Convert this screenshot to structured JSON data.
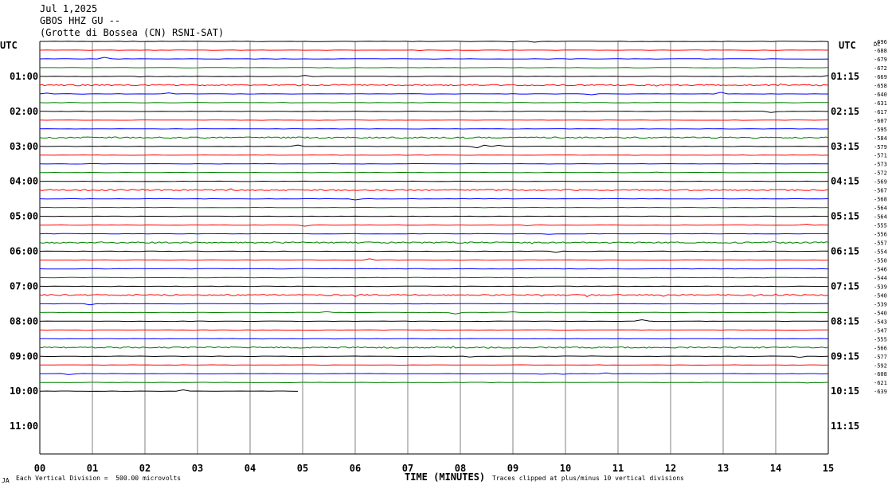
{
  "header": {
    "date": "Jul 1,2025",
    "station": "GBOS HHZ GU --",
    "location": "(Grotte di Bossea (CN) RSNI-SAT)"
  },
  "left_axis_label": "UTC",
  "right_axis_label": "UTC",
  "right_top_label": "DC",
  "footer": {
    "division": "Each Vertical Division =  500.00 microvolts",
    "clip_note": "Traces clipped at plus/minus 10 vertical divisions",
    "corner_mark": "JA"
  },
  "chart_data": {
    "type": "line",
    "title": "",
    "xlabel": "TIME (MINUTES)",
    "x_ticks": [
      "00",
      "01",
      "02",
      "03",
      "04",
      "05",
      "06",
      "07",
      "08",
      "09",
      "10",
      "11",
      "12",
      "13",
      "14",
      "15"
    ],
    "xlim": [
      0,
      15
    ],
    "left_hour_labels": [
      "01:00",
      "02:00",
      "03:00",
      "04:00",
      "05:00",
      "06:00",
      "07:00",
      "08:00",
      "09:00",
      "10:00",
      "11:00"
    ],
    "right_hour_labels": [
      "01:15",
      "02:15",
      "03:15",
      "04:15",
      "05:15",
      "06:15",
      "07:15",
      "08:15",
      "09:15",
      "10:15",
      "11:15"
    ],
    "trace_colors": [
      "#000000",
      "#ff0000",
      "#0000ff",
      "#008000"
    ],
    "trace_count": 41,
    "last_trace_end_minute": 5,
    "dc_offsets": [
      "-696",
      "-688",
      "-679",
      "-672",
      "-669",
      "-658",
      "-640",
      "-631",
      "-617",
      "-607",
      "-595",
      "-584",
      "-579",
      "-571",
      "-573",
      "-572",
      "-569",
      "-567",
      "-568",
      "-564",
      "-564",
      "-555",
      "-556",
      "-557",
      "-554",
      "-550",
      "-546",
      "-544",
      "-539",
      "-540",
      "-539",
      "-540",
      "-543",
      "-547",
      "-555",
      "-566",
      "-577",
      "-592",
      "-608",
      "-621",
      "-639"
    ],
    "grid": true
  }
}
